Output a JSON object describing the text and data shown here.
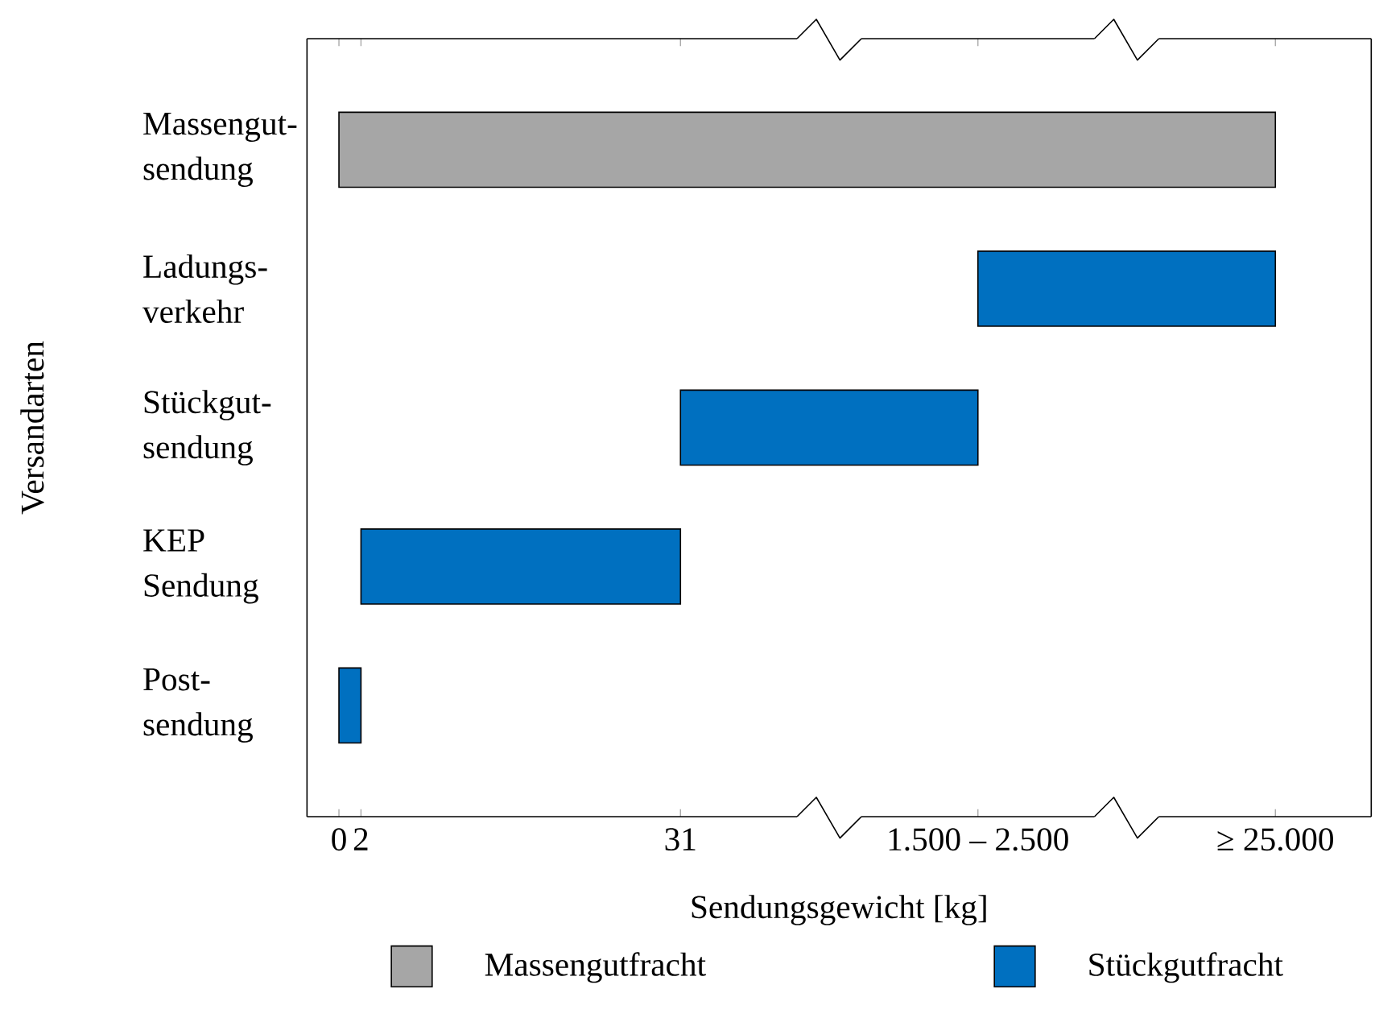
{
  "chart_data": {
    "type": "bar",
    "orientation": "horizontal",
    "xlabel": "Sendungsgewicht [kg]",
    "ylabel": "Versandarten",
    "categories": [
      "Massengut-sendung",
      "Ladungs-verkehr",
      "Stückgut-sendung",
      "KEP Sendung",
      "Post-sendung"
    ],
    "series": [
      {
        "name": "Massengutfracht",
        "color": "#a6a6a6",
        "base": [
          0,
          null,
          null,
          null,
          null
        ],
        "values": [
          85,
          null,
          null,
          null,
          null
        ]
      },
      {
        "name": "Stückgutfracht",
        "color": "#0070c0",
        "base": [
          null,
          58,
          31,
          2,
          0
        ],
        "values": [
          null,
          27,
          27,
          29,
          2
        ]
      }
    ],
    "xlim": [
      -2.9,
      93.7
    ],
    "xticks": [
      0,
      2,
      31,
      {
        "value": 58,
        "label": "1.500 – 2.500"
      },
      {
        "value": 85,
        "label": "≥ 25.000"
      }
    ],
    "legend": "bottom"
  }
}
